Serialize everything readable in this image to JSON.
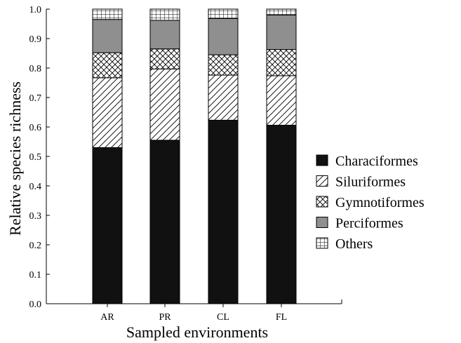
{
  "chart_data": {
    "type": "bar",
    "stacked": true,
    "title": "",
    "xlabel": "Sampled environments",
    "ylabel": "Relative species richness",
    "categories": [
      "AR",
      "PR",
      "CL",
      "FL"
    ],
    "ylim": [
      0,
      1.0
    ],
    "yticks": [
      "0.0",
      "0.1",
      "0.2",
      "0.3",
      "0.4",
      "0.5",
      "0.6",
      "0.7",
      "0.8",
      "0.9",
      "1.0"
    ],
    "grid": false,
    "legend_position": "right",
    "series": [
      {
        "name": "Characiformes",
        "pattern": "solid-dark",
        "color": "#111111",
        "values": [
          0.53,
          0.555,
          0.623,
          0.606
        ]
      },
      {
        "name": "Siluriformes",
        "pattern": "diagonal-hatch",
        "color": "#ffffff",
        "values": [
          0.237,
          0.242,
          0.153,
          0.168
        ]
      },
      {
        "name": "Gymnotiformes",
        "pattern": "crosshatch",
        "color": "#ffffff",
        "values": [
          0.085,
          0.068,
          0.069,
          0.089
        ]
      },
      {
        "name": "Perciformes",
        "pattern": "solid-gray",
        "color": "#8f8f8f",
        "values": [
          0.113,
          0.097,
          0.123,
          0.117
        ]
      },
      {
        "name": "Others",
        "pattern": "grid",
        "color": "#ffffff",
        "values": [
          0.035,
          0.038,
          0.032,
          0.02
        ]
      }
    ]
  }
}
